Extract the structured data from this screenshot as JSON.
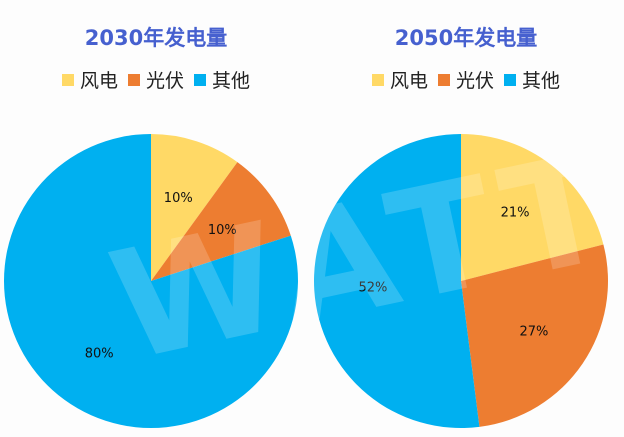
{
  "watermark": "WATT",
  "chart_data": [
    {
      "type": "pie",
      "title": "2030年发电量",
      "categories": [
        "风电",
        "光伏",
        "其他"
      ],
      "values": [
        10,
        10,
        80
      ],
      "labels": [
        "10%",
        "10%",
        "80%"
      ],
      "colors": [
        "#FFD966",
        "#ED7D31",
        "#00B0F0"
      ],
      "start": "12 o'clock, clockwise",
      "legend": "top"
    },
    {
      "type": "pie",
      "title": "2050年发电量",
      "categories": [
        "风电",
        "光伏",
        "其他"
      ],
      "values": [
        21,
        27,
        52
      ],
      "labels": [
        "21%",
        "27%",
        "52%"
      ],
      "colors": [
        "#FFD966",
        "#ED7D31",
        "#00B0F0"
      ],
      "start": "12 o'clock, clockwise",
      "legend": "top"
    }
  ]
}
